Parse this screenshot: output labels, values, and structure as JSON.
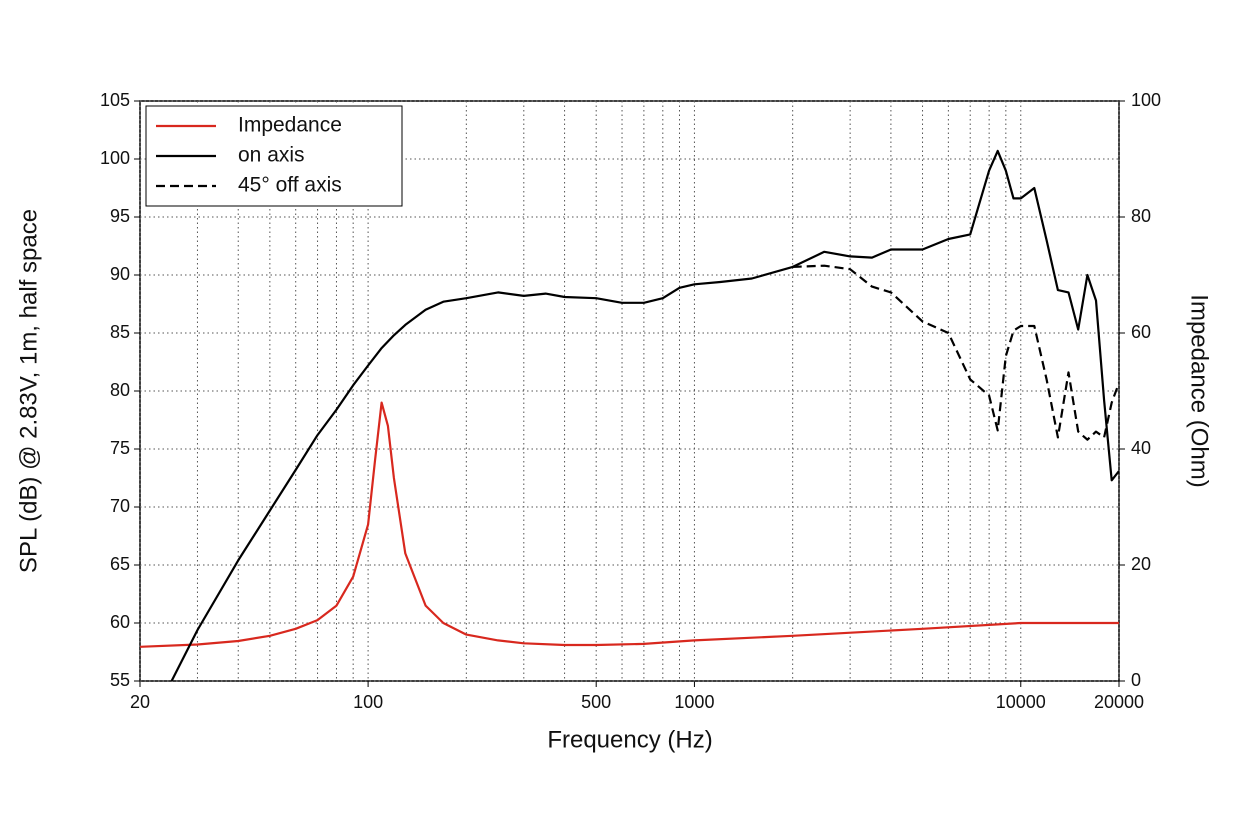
{
  "chart_data": {
    "type": "line",
    "xlabel": "Frequency (Hz)",
    "ylabel": "SPL (dB) @ 2.83V, 1m, half space",
    "y2label": "Impedance (Ohm)",
    "xscale": "log",
    "grid": true,
    "legend": "upper left",
    "xlim": [
      20,
      20000
    ],
    "xticks": [
      20,
      100,
      500,
      1000,
      10000,
      20000
    ],
    "x_minor_ticks": [
      30,
      40,
      50,
      60,
      70,
      80,
      90,
      200,
      300,
      400,
      600,
      700,
      800,
      900,
      2000,
      3000,
      4000,
      5000,
      6000,
      7000,
      8000,
      9000
    ],
    "ylim": [
      55,
      105
    ],
    "yticks": [
      55,
      60,
      65,
      70,
      75,
      80,
      85,
      90,
      95,
      100,
      105
    ],
    "y2lim": [
      0,
      100
    ],
    "y2ticks": [
      0,
      20,
      40,
      60,
      80,
      100
    ],
    "series": [
      {
        "name": "Impedance",
        "color": "#d8281e",
        "axis": "y2",
        "dashed": false,
        "x": [
          20,
          30,
          40,
          50,
          60,
          70,
          80,
          90,
          100,
          105,
          110,
          115,
          120,
          130,
          150,
          170,
          200,
          250,
          300,
          400,
          500,
          700,
          1000,
          2000,
          5000,
          10000,
          20000
        ],
        "values": [
          5.9,
          6.3,
          6.9,
          7.8,
          9,
          10.5,
          13,
          18,
          27,
          38,
          48,
          44,
          35,
          22,
          13,
          10,
          8,
          7,
          6.5,
          6.2,
          6.2,
          6.4,
          7,
          7.8,
          9,
          10,
          10
        ]
      },
      {
        "name": "on axis",
        "color": "#000000",
        "dashed": false,
        "x": [
          25,
          30,
          40,
          50,
          60,
          70,
          80,
          90,
          100,
          110,
          120,
          130,
          150,
          170,
          200,
          250,
          300,
          350,
          400,
          500,
          600,
          700,
          800,
          900,
          1000,
          1200,
          1500,
          2000,
          2500,
          3000,
          3500,
          4000,
          5000,
          6000,
          7000,
          8000,
          8500,
          9000,
          9500,
          10000,
          11000,
          12000,
          13000,
          14000,
          15000,
          16000,
          17000,
          18000,
          19000,
          20000
        ],
        "values": [
          55,
          59.4,
          65.4,
          69.7,
          73.2,
          76.2,
          78.4,
          80.5,
          82.2,
          83.7,
          84.8,
          85.7,
          87,
          87.7,
          88,
          88.5,
          88.2,
          88.4,
          88.1,
          88,
          87.6,
          87.6,
          88,
          88.9,
          89.2,
          89.4,
          89.7,
          90.7,
          92,
          91.6,
          91.5,
          92.2,
          92.2,
          93.1,
          93.5,
          99,
          100.7,
          99,
          96.6,
          96.6,
          97.5,
          93,
          88.7,
          88.5,
          85.3,
          90,
          87.8,
          79.2,
          72.3,
          73.1
        ]
      },
      {
        "name": "45° off axis",
        "color": "#000000",
        "dashed": true,
        "x": [
          2000,
          2500,
          3000,
          3500,
          4000,
          5000,
          6000,
          7000,
          8000,
          8500,
          9000,
          9500,
          10000,
          11000,
          12000,
          13000,
          14000,
          15000,
          16000,
          17000,
          18000,
          19000,
          20000
        ],
        "values": [
          90.7,
          90.8,
          90.5,
          89,
          88.5,
          86,
          85,
          81,
          79.6,
          76.6,
          83,
          85.2,
          85.6,
          85.6,
          81,
          76,
          81.6,
          76.5,
          75.8,
          76.5,
          76,
          79,
          80.7
        ]
      }
    ]
  }
}
